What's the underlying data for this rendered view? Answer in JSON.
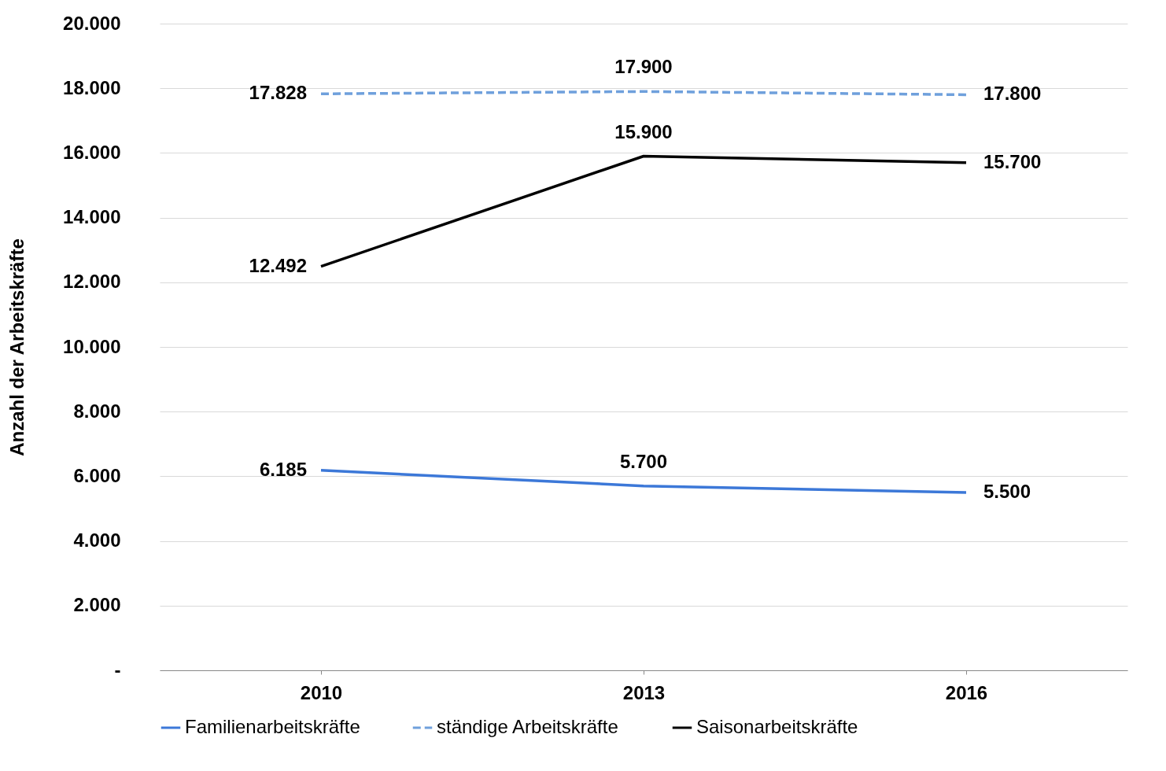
{
  "chart_data": {
    "type": "line",
    "ylabel": "Anzahl der Arbeitskräfte",
    "categories": [
      "2010",
      "2013",
      "2016"
    ],
    "series": [
      {
        "name": "Familienarbeitskräfte",
        "color": "#3c78d8",
        "line_style": "solid",
        "values": [
          6185,
          5700,
          5500
        ],
        "value_labels": [
          "6.185",
          "5.700",
          "5.500"
        ]
      },
      {
        "name": "ständige Arbeitskräfte",
        "color": "#6fa0dc",
        "line_style": "dashed",
        "values": [
          17828,
          17900,
          17800
        ],
        "value_labels": [
          "17.828",
          "17.900",
          "17.800"
        ]
      },
      {
        "name": "Saisonarbeitskräfte",
        "color": "#000000",
        "line_style": "solid",
        "values": [
          12492,
          15900,
          15700
        ],
        "value_labels": [
          "12.492",
          "15.900",
          "15.700"
        ]
      }
    ],
    "ylim": [
      0,
      20000
    ],
    "yticks": [
      {
        "value": 0,
        "label": "-"
      },
      {
        "value": 2000,
        "label": "2.000"
      },
      {
        "value": 4000,
        "label": "4.000"
      },
      {
        "value": 6000,
        "label": "6.000"
      },
      {
        "value": 8000,
        "label": "8.000"
      },
      {
        "value": 10000,
        "label": "10.000"
      },
      {
        "value": 12000,
        "label": "12.000"
      },
      {
        "value": 14000,
        "label": "14.000"
      },
      {
        "value": 16000,
        "label": "16.000"
      },
      {
        "value": 18000,
        "label": "18.000"
      },
      {
        "value": 20000,
        "label": "20.000"
      }
    ],
    "grid": "y",
    "legend": "bottom",
    "marker": "none"
  }
}
